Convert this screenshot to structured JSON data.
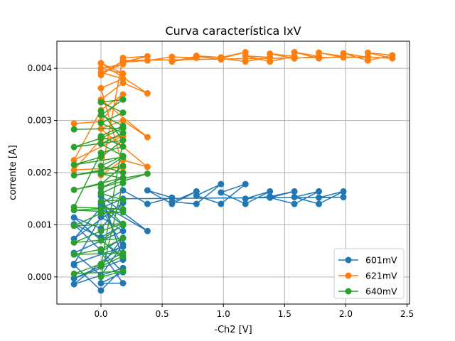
{
  "chart_data": {
    "type": "line",
    "title": "Curva característica IxV",
    "xlabel": "-Ch2 [V]",
    "ylabel": "corrente [A]",
    "xlim": [
      -0.36,
      2.52
    ],
    "ylim": [
      -0.00052,
      0.00452
    ],
    "xticks": [
      0.0,
      0.5,
      1.0,
      1.5,
      2.0,
      2.5
    ],
    "xtick_labels": [
      "0.0",
      "0.5",
      "1.0",
      "1.5",
      "2.0",
      "2.5"
    ],
    "yticks": [
      0.0,
      0.001,
      0.002,
      0.003,
      0.004
    ],
    "ytick_labels": [
      "0.000",
      "0.001",
      "0.002",
      "0.003",
      "0.004"
    ],
    "grid": true,
    "legend_position": "lower-right",
    "series": [
      {
        "name": "601mV",
        "color": "#1f77b4",
        "marker": "o",
        "points": [
          [
            -0.22,
            0.00023
          ],
          [
            0.0,
            -0.00026
          ],
          [
            0.18,
            0.00017
          ],
          [
            -0.22,
            -0.00014
          ],
          [
            0.18,
            0.00062
          ],
          [
            0.0,
            3e-05
          ],
          [
            -0.22,
            0.00046
          ],
          [
            0.18,
            0.00088
          ],
          [
            0.0,
            0.00115
          ],
          [
            -0.22,
            0.00025
          ],
          [
            0.18,
            0.00058
          ],
          [
            0.0,
            0.00133
          ],
          [
            -0.22,
            0.00073
          ],
          [
            0.18,
            0.00142
          ],
          [
            0.0,
            0.00093
          ],
          [
            -0.22,
            0.00114
          ],
          [
            0.18,
            0.00035
          ],
          [
            0.0,
            0.00155
          ],
          [
            0.38,
            0.00088
          ],
          [
            0.0,
            0.0014
          ],
          [
            0.18,
            0.00166
          ],
          [
            0.38,
            0.0014
          ],
          [
            0.58,
            0.00152
          ],
          [
            0.38,
            0.00166
          ],
          [
            0.58,
            0.0014
          ],
          [
            0.78,
            0.00164
          ],
          [
            0.58,
            0.00144
          ],
          [
            0.78,
            0.0014
          ],
          [
            0.98,
            0.00178
          ],
          [
            0.78,
            0.00156
          ],
          [
            0.98,
            0.0014
          ],
          [
            1.18,
            0.00178
          ],
          [
            0.98,
            0.00162
          ],
          [
            1.18,
            0.0014
          ],
          [
            1.38,
            0.00164
          ],
          [
            1.18,
            0.0015
          ],
          [
            1.38,
            0.00154
          ],
          [
            1.58,
            0.00164
          ],
          [
            1.38,
            0.00152
          ],
          [
            1.58,
            0.0014
          ],
          [
            1.78,
            0.00164
          ],
          [
            1.58,
            0.00153
          ],
          [
            1.78,
            0.0014
          ],
          [
            1.98,
            0.00164
          ],
          [
            1.78,
            0.00152
          ],
          [
            1.98,
            0.00153
          ],
          [
            0.18,
            0.0015
          ],
          [
            0.0,
            0.00132
          ],
          [
            0.18,
            0.00099
          ],
          [
            0.0,
            0.00076
          ],
          [
            -0.22,
            0.00101
          ],
          [
            0.18,
            9e-05
          ],
          [
            0.0,
            -0.00012
          ],
          [
            0.18,
            -0.00012
          ],
          [
            0.0,
            0.00048
          ],
          [
            0.18,
            0.00075
          ],
          [
            0.0,
            0.00021
          ],
          [
            -0.22,
            -3e-05
          ],
          [
            0.18,
            0.00033
          ],
          [
            0.0,
            0.00162
          ]
        ]
      },
      {
        "name": "621mV",
        "color": "#ff7f0e",
        "marker": "o",
        "points": [
          [
            -0.22,
            0.00294
          ],
          [
            0.0,
            0.00298
          ],
          [
            0.18,
            0.0035
          ],
          [
            0.0,
            0.0032
          ],
          [
            -0.22,
            0.00224
          ],
          [
            0.18,
            0.0027
          ],
          [
            0.0,
            0.00264
          ],
          [
            -0.22,
            0.00205
          ],
          [
            0.18,
            0.0021
          ],
          [
            0.0,
            0.00362
          ],
          [
            0.18,
            0.0038
          ],
          [
            0.0,
            0.00392
          ],
          [
            0.18,
            0.00408
          ],
          [
            0.0,
            0.004
          ],
          [
            0.18,
            0.0039
          ],
          [
            0.0,
            0.0041
          ],
          [
            0.38,
            0.00352
          ],
          [
            0.18,
            0.00372
          ],
          [
            0.0,
            0.0034
          ],
          [
            0.38,
            0.00268
          ],
          [
            0.18,
            0.003
          ],
          [
            0.0,
            0.00284
          ],
          [
            0.38,
            0.00211
          ],
          [
            0.18,
            0.00224
          ],
          [
            0.0,
            0.00195
          ],
          [
            0.18,
            0.0042
          ],
          [
            0.38,
            0.00423
          ],
          [
            0.18,
            0.00412
          ],
          [
            0.38,
            0.00415
          ],
          [
            0.58,
            0.00422
          ],
          [
            0.78,
            0.0042
          ],
          [
            0.58,
            0.00413
          ],
          [
            0.78,
            0.00423
          ],
          [
            0.98,
            0.00417
          ],
          [
            0.78,
            0.00424
          ],
          [
            0.98,
            0.00421
          ],
          [
            1.18,
            0.00431
          ],
          [
            0.98,
            0.00419
          ],
          [
            1.18,
            0.00413
          ],
          [
            1.38,
            0.00421
          ],
          [
            1.18,
            0.00424
          ],
          [
            1.38,
            0.00413
          ],
          [
            1.58,
            0.00423
          ],
          [
            1.38,
            0.00428
          ],
          [
            1.58,
            0.00419
          ],
          [
            1.78,
            0.00423
          ],
          [
            1.58,
            0.00431
          ],
          [
            1.78,
            0.00419
          ],
          [
            1.98,
            0.00423
          ],
          [
            1.78,
            0.0043
          ],
          [
            1.98,
            0.00421
          ],
          [
            2.18,
            0.00421
          ],
          [
            1.98,
            0.00429
          ],
          [
            2.18,
            0.00415
          ],
          [
            2.38,
            0.00425
          ],
          [
            2.18,
            0.0043
          ],
          [
            2.38,
            0.00419
          ],
          [
            2.18,
            0.00422
          ],
          [
            0.18,
            0.00415
          ],
          [
            0.0,
            0.00387
          ]
        ]
      },
      {
        "name": "640mV",
        "color": "#2ca02c",
        "marker": "o",
        "points": [
          [
            -0.22,
            0.00283
          ],
          [
            0.18,
            0.00285
          ],
          [
            0.0,
            0.00266
          ],
          [
            -0.22,
            0.00249
          ],
          [
            0.18,
            0.00262
          ],
          [
            0.0,
            0.0023
          ],
          [
            -0.22,
            0.00215
          ],
          [
            0.18,
            0.0023
          ],
          [
            0.0,
            0.00202
          ],
          [
            -0.22,
            0.00195
          ],
          [
            0.18,
            0.00213
          ],
          [
            0.0,
            0.00178
          ],
          [
            -0.22,
            0.00167
          ],
          [
            0.18,
            0.0019
          ],
          [
            0.0,
            0.00171
          ],
          [
            0.38,
            0.00198
          ],
          [
            0.18,
            0.00189
          ],
          [
            0.0,
            0.00198
          ],
          [
            0.18,
            0.002
          ],
          [
            0.0,
            0.00213
          ],
          [
            0.18,
            0.00232
          ],
          [
            0.0,
            0.00255
          ],
          [
            0.18,
            0.00276
          ],
          [
            0.0,
            0.00295
          ],
          [
            0.18,
            0.00315
          ],
          [
            0.0,
            0.00335
          ],
          [
            0.18,
            0.0034
          ],
          [
            0.0,
            0.0031
          ],
          [
            0.18,
            0.0029
          ],
          [
            0.0,
            0.0027
          ],
          [
            0.18,
            0.0025
          ],
          [
            0.0,
            0.00238
          ],
          [
            -0.22,
            0.00134
          ],
          [
            0.18,
            0.0013
          ],
          [
            0.0,
            0.00131
          ],
          [
            -0.22,
            0.00128
          ],
          [
            0.18,
            0.00124
          ],
          [
            0.0,
            0.00122
          ],
          [
            -0.22,
            0.00098
          ],
          [
            0.18,
            0.00102
          ],
          [
            0.0,
            0.00088
          ],
          [
            -0.22,
            0.00066
          ],
          [
            0.18,
            0.00074
          ],
          [
            0.0,
            0.00053
          ],
          [
            -0.22,
            0.00043
          ],
          [
            0.18,
            0.00046
          ],
          [
            0.0,
            0.00025
          ],
          [
            -0.22,
            6e-05
          ],
          [
            0.18,
            0.00011
          ],
          [
            0.0,
            0.0
          ],
          [
            0.18,
            0.0018
          ],
          [
            0.0,
            0.0016
          ],
          [
            0.18,
            0.00148
          ],
          [
            0.0,
            0.00145
          ],
          [
            0.18,
            0.001
          ],
          [
            0.0,
            0.0007
          ],
          [
            0.18,
            0.0004
          ],
          [
            0.0,
            0.0002
          ],
          [
            0.18,
            0.00262
          ],
          [
            0.0,
            0.00318
          ]
        ]
      }
    ]
  }
}
